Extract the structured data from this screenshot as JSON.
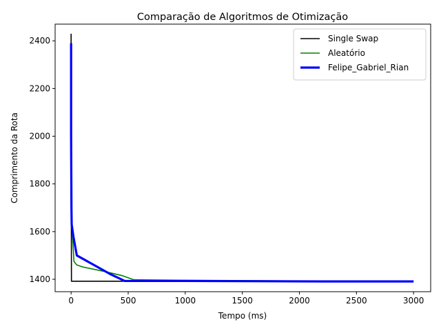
{
  "chart_data": {
    "type": "line",
    "title": "Comparação de Algoritmos de Otimização",
    "xlabel": "Tempo (ms)",
    "ylabel": "Comprimento da Rota",
    "xlim": [
      -140,
      3150
    ],
    "ylim": [
      1348,
      2470
    ],
    "xticks": [
      0,
      500,
      1000,
      1500,
      2000,
      2500,
      3000
    ],
    "yticks": [
      1400,
      1600,
      1800,
      2000,
      2200,
      2400
    ],
    "grid": false,
    "legend_position": "top-right",
    "series": [
      {
        "name": "Single Swap",
        "color": "#000000",
        "points": [
          [
            0,
            2430
          ],
          [
            0,
            1850
          ],
          [
            2,
            1620
          ],
          [
            3,
            1392
          ],
          [
            100,
            1392
          ],
          [
            500,
            1392
          ],
          [
            1000,
            1392
          ],
          [
            2000,
            1392
          ],
          [
            3000,
            1392
          ]
        ]
      },
      {
        "name": "Aleatório",
        "color": "#008000",
        "points": [
          [
            0,
            2380
          ],
          [
            2,
            1900
          ],
          [
            5,
            1700
          ],
          [
            10,
            1600
          ],
          [
            25,
            1475
          ],
          [
            50,
            1460
          ],
          [
            100,
            1452
          ],
          [
            300,
            1432
          ],
          [
            450,
            1415
          ],
          [
            550,
            1398
          ],
          [
            1000,
            1396
          ],
          [
            2000,
            1393
          ],
          [
            3000,
            1391
          ]
        ]
      },
      {
        "name": "Felipe_Gabriel_Rian",
        "color": "#0000ff",
        "points": [
          [
            0,
            2390
          ],
          [
            0,
            2000
          ],
          [
            3,
            1700
          ],
          [
            5,
            1630
          ],
          [
            20,
            1580
          ],
          [
            50,
            1500
          ],
          [
            200,
            1460
          ],
          [
            350,
            1420
          ],
          [
            470,
            1393
          ],
          [
            1000,
            1393
          ],
          [
            2200,
            1391
          ],
          [
            3000,
            1391
          ]
        ]
      }
    ]
  }
}
